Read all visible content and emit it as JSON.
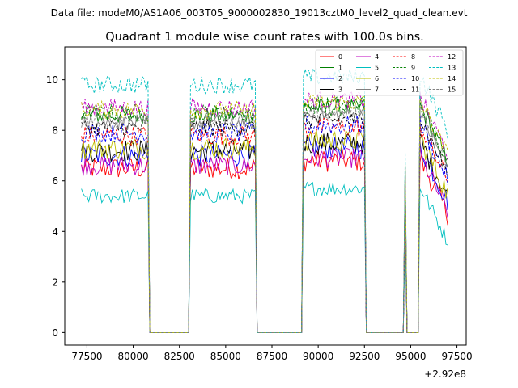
{
  "chart_data": {
    "type": "line",
    "suptitle": "Data file: modeM0/AS1A06_003T05_9000002830_19013cztM0_level2_quad_clean.evt",
    "title": "Quadrant 1 module wise count rates with 100.0s bins.",
    "xlabel": "",
    "ylabel": "",
    "x_offset_label": "+2.92e8",
    "xlim": [
      76300,
      98000
    ],
    "ylim": [
      -0.5,
      11.3
    ],
    "xticks": [
      77500,
      80000,
      82500,
      85000,
      87500,
      90000,
      92500,
      95000,
      97500
    ],
    "yticks": [
      0,
      2,
      4,
      6,
      8,
      10
    ],
    "legend_position": "top-right",
    "bin_seconds": 100,
    "segments": [
      [
        77200,
        80800
      ],
      [
        83100,
        86600
      ],
      [
        89200,
        92500
      ],
      [
        94650,
        94750
      ],
      [
        95500,
        97000
      ]
    ],
    "gaps_zero": [
      [
        81000,
        82900
      ],
      [
        86800,
        89000
      ],
      [
        92700,
        94600
      ],
      [
        94850,
        95300
      ]
    ],
    "series": [
      {
        "name": "0",
        "color": "#ff0000",
        "dash": "solid",
        "level": 6.5,
        "noise": 0.45
      },
      {
        "name": "1",
        "color": "#008000",
        "dash": "solid",
        "level": 8.6,
        "noise": 0.35
      },
      {
        "name": "2",
        "color": "#0000ff",
        "dash": "solid",
        "level": 7.0,
        "noise": 0.45
      },
      {
        "name": "3",
        "color": "#000000",
        "dash": "solid",
        "level": 7.2,
        "noise": 0.45
      },
      {
        "name": "4",
        "color": "#bf00bf",
        "dash": "solid",
        "level": 6.6,
        "noise": 0.4
      },
      {
        "name": "5",
        "color": "#00bfbf",
        "dash": "solid",
        "level": 5.4,
        "noise": 0.3
      },
      {
        "name": "6",
        "color": "#bfbf00",
        "dash": "solid",
        "level": 7.3,
        "noise": 0.45
      },
      {
        "name": "7",
        "color": "#808080",
        "dash": "solid",
        "level": 8.3,
        "noise": 0.3
      },
      {
        "name": "8",
        "color": "#ff0000",
        "dash": "dashed",
        "level": 7.8,
        "noise": 0.4
      },
      {
        "name": "9",
        "color": "#008000",
        "dash": "dashed",
        "level": 8.7,
        "noise": 0.35
      },
      {
        "name": "10",
        "color": "#0000ff",
        "dash": "dashed",
        "level": 7.9,
        "noise": 0.4
      },
      {
        "name": "11",
        "color": "#000000",
        "dash": "dashed",
        "level": 8.1,
        "noise": 0.35
      },
      {
        "name": "12",
        "color": "#bf00bf",
        "dash": "dashed",
        "level": 8.9,
        "noise": 0.35
      },
      {
        "name": "13",
        "color": "#00bfbf",
        "dash": "dashed",
        "level": 9.8,
        "noise": 0.35
      },
      {
        "name": "14",
        "color": "#bfbf00",
        "dash": "dashed",
        "level": 8.8,
        "noise": 0.35
      },
      {
        "name": "15",
        "color": "#808080",
        "dash": "dashed",
        "level": 8.4,
        "noise": 0.3
      }
    ]
  }
}
